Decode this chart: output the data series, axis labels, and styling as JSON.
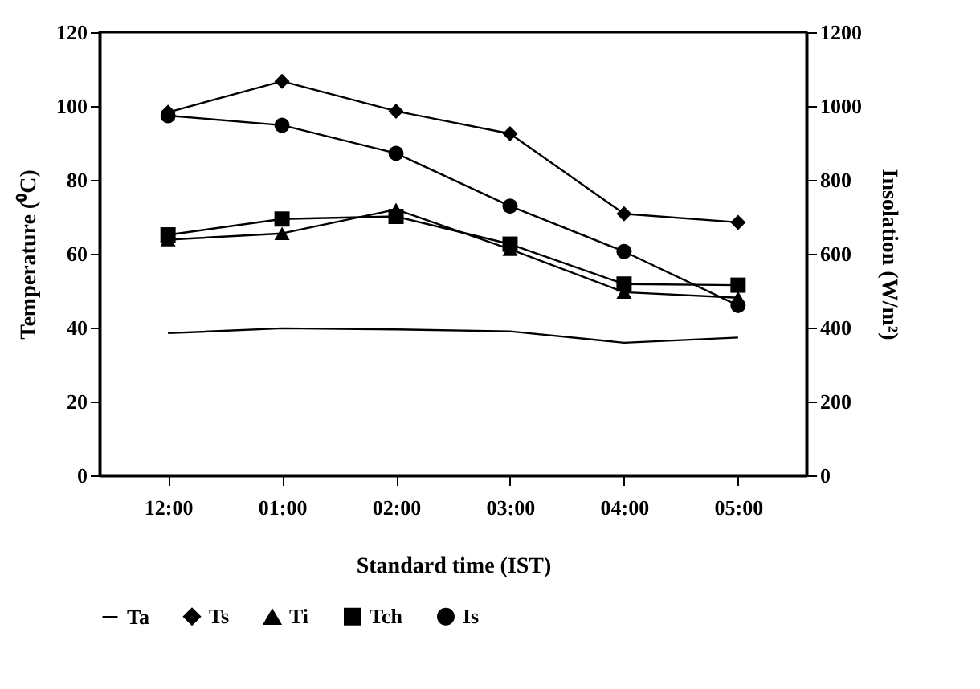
{
  "chart_data": {
    "type": "line",
    "xlabel": "Standard time (IST)",
    "ylabel": "Temperature (⁰C)",
    "y2label": "Insolation (W/m²)",
    "categories": [
      "12:00",
      "01:00",
      "02:00",
      "03:00",
      "04:00",
      "05:00"
    ],
    "series": [
      {
        "name": "Ta",
        "color": "#000000",
        "marker": "none",
        "values": [
          38.5,
          39.8,
          39.5,
          39,
          35.9,
          37.3
        ]
      },
      {
        "name": "Ts",
        "color": "#000000",
        "marker": "diamond",
        "values": [
          98.3,
          106.7,
          98.6,
          92.5,
          70.8,
          68.5
        ]
      },
      {
        "name": "Ti",
        "color": "#000000",
        "marker": "triangle",
        "values": [
          63.8,
          65.5,
          72,
          61.2,
          49.6,
          48.1
        ]
      },
      {
        "name": "Tch",
        "color": "#000000",
        "marker": "square",
        "values": [
          65.1,
          69.4,
          70.1,
          62.6,
          51.8,
          51.5
        ]
      },
      {
        "name": "Is",
        "color": "#000000",
        "marker": "circle",
        "axis": "y2",
        "values": [
          974,
          948,
          872,
          729,
          606,
          460
        ]
      }
    ],
    "ylim": [
      0,
      120
    ],
    "yticks": [
      0,
      20,
      40,
      60,
      80,
      100,
      120
    ],
    "y2lim": [
      0,
      1200
    ],
    "y2ticks": [
      0,
      200,
      400,
      600,
      800,
      1000,
      1200
    ],
    "grid": false,
    "legend": "bottom",
    "line_style": "solid"
  }
}
